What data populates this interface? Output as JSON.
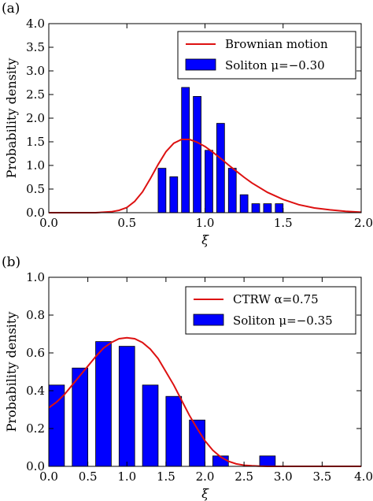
{
  "chart_data": [
    {
      "panel_label": "(a)",
      "type": "bar",
      "xlabel": "ξ",
      "ylabel": "Probability density",
      "xlim": [
        0.0,
        2.0
      ],
      "ylim": [
        0.0,
        4.0
      ],
      "xticks": [
        "0.0",
        "0.5",
        "1.0",
        "1.5",
        "2.0"
      ],
      "yticks": [
        "0.0",
        "0.5",
        "1.0",
        "1.5",
        "2.0",
        "2.5",
        "3.0",
        "3.5",
        "4.0"
      ],
      "legend_position": "upper-right",
      "colors": {
        "bars": "#0000ff",
        "curve": "#dd1111"
      },
      "bar_width": 0.05,
      "bars": {
        "name": "Soliton μ=−0.30",
        "x": [
          0.725,
          0.8,
          0.875,
          0.95,
          1.025,
          1.1,
          1.175,
          1.25,
          1.325,
          1.4,
          1.475
        ],
        "values": [
          0.94,
          0.76,
          2.65,
          2.46,
          1.32,
          1.89,
          0.94,
          0.38,
          0.19,
          0.19,
          0.19
        ]
      },
      "curve": {
        "name": "Brownian motion",
        "x": [
          0.0,
          0.2,
          0.3,
          0.35,
          0.4,
          0.45,
          0.5,
          0.55,
          0.6,
          0.65,
          0.7,
          0.75,
          0.8,
          0.85,
          0.9,
          0.95,
          1.0,
          1.05,
          1.1,
          1.15,
          1.2,
          1.25,
          1.3,
          1.4,
          1.5,
          1.6,
          1.7,
          1.8,
          1.9,
          2.0
        ],
        "y": [
          0.0,
          0.0,
          0.0,
          0.01,
          0.02,
          0.05,
          0.11,
          0.24,
          0.44,
          0.72,
          1.02,
          1.29,
          1.47,
          1.55,
          1.55,
          1.49,
          1.4,
          1.28,
          1.15,
          1.01,
          0.88,
          0.75,
          0.63,
          0.43,
          0.28,
          0.17,
          0.1,
          0.06,
          0.03,
          0.01
        ]
      }
    },
    {
      "panel_label": "(b)",
      "type": "bar",
      "xlabel": "ξ",
      "ylabel": "Probability density",
      "xlim": [
        0.0,
        4.0
      ],
      "ylim": [
        0.0,
        1.0
      ],
      "xticks": [
        "0.0",
        "0.5",
        "1.0",
        "1.5",
        "2.0",
        "2.5",
        "3.0",
        "3.5",
        "4.0"
      ],
      "yticks": [
        "0.0",
        "0.2",
        "0.4",
        "0.6",
        "0.8",
        "1.0"
      ],
      "legend_position": "upper-right",
      "colors": {
        "bars": "#0000ff",
        "curve": "#dd1111"
      },
      "bar_width": 0.2,
      "bars": {
        "name": "Soliton μ=−0.35",
        "x": [
          0.1,
          0.4,
          0.7,
          1.0,
          1.3,
          1.6,
          1.9,
          2.2,
          2.5,
          2.8
        ],
        "values": [
          0.43,
          0.52,
          0.66,
          0.635,
          0.43,
          0.37,
          0.245,
          0.055,
          0.0,
          0.055
        ]
      },
      "curve": {
        "name": "CTRW α=0.75",
        "x": [
          0.0,
          0.1,
          0.2,
          0.3,
          0.4,
          0.5,
          0.6,
          0.7,
          0.8,
          0.9,
          1.0,
          1.1,
          1.2,
          1.3,
          1.4,
          1.5,
          1.6,
          1.7,
          1.8,
          1.9,
          2.0,
          2.1,
          2.2,
          2.3,
          2.4,
          2.5,
          2.6,
          2.7,
          2.8,
          3.0,
          3.5,
          4.0
        ],
        "y": [
          0.31,
          0.34,
          0.38,
          0.43,
          0.48,
          0.53,
          0.58,
          0.625,
          0.655,
          0.675,
          0.68,
          0.675,
          0.655,
          0.62,
          0.57,
          0.5,
          0.43,
          0.35,
          0.27,
          0.2,
          0.135,
          0.085,
          0.05,
          0.027,
          0.013,
          0.006,
          0.003,
          0.001,
          0.0,
          0.0,
          0.0,
          0.0
        ]
      }
    }
  ]
}
